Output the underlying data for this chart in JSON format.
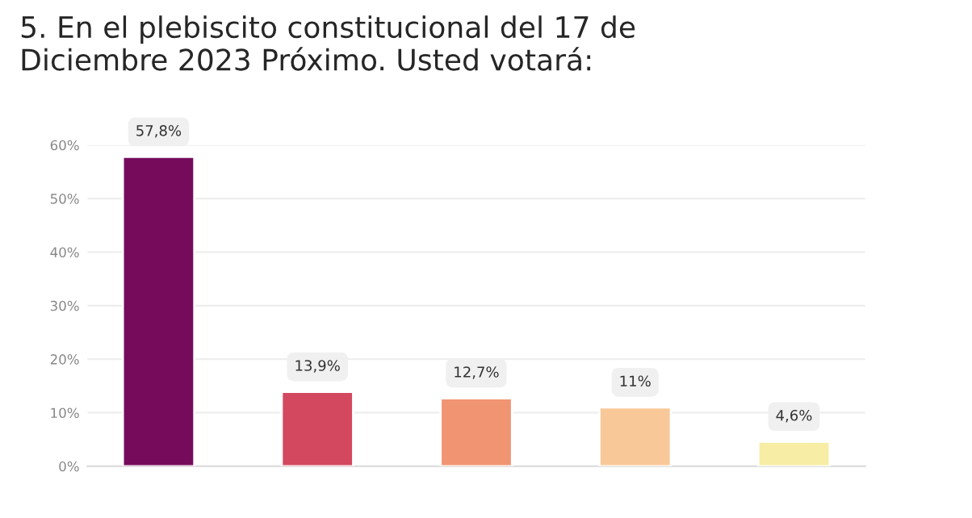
{
  "chart_data": {
    "type": "bar",
    "title": "5. En el plebiscito constitucional del 17 de\nDiciembre 2023 Próximo. Usted votará:",
    "categories": [
      null,
      null,
      null,
      null,
      null
    ],
    "values": [
      57.8,
      13.9,
      12.7,
      11,
      4.6
    ],
    "value_labels": [
      "57,8%",
      "13,9%",
      "12,7%",
      "11%",
      "4,6%"
    ],
    "colors": [
      "#760b5c",
      "#d4485f",
      "#f19472",
      "#f8c898",
      "#f7eda5"
    ],
    "ylim": [
      0,
      60
    ],
    "yticks": [
      {
        "value": 0,
        "label": "0%"
      },
      {
        "value": 10,
        "label": "10%"
      },
      {
        "value": 20,
        "label": "20%"
      },
      {
        "value": 30,
        "label": "30%"
      },
      {
        "value": 40,
        "label": "40%"
      },
      {
        "value": 50,
        "label": "50%"
      },
      {
        "value": 60,
        "label": "60%"
      }
    ],
    "grid": "y"
  }
}
